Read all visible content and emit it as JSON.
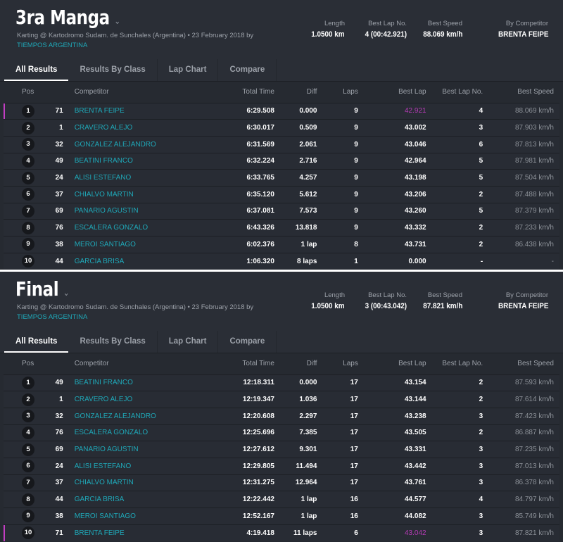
{
  "columns": [
    "Pos",
    "",
    "Competitor",
    "Total Time",
    "Diff",
    "Laps",
    "Best Lap",
    "Best Lap No.",
    "Best Speed"
  ],
  "tabs": [
    "All Results",
    "Results By Class",
    "Lap Chart",
    "Compare"
  ],
  "sessions": [
    {
      "title": "3ra Manga",
      "subtitle": "Karting @ Kartodromo Sudam. de Sunchales (Argentina) • 23 February 2018 by",
      "organizer": "TIEMPOS ARGENTINA",
      "stats": {
        "length_label": "Length",
        "length": "1.0500 km",
        "bestlapno_label": "Best Lap No.",
        "bestlapno": "4 (00:42.921)",
        "bestspeed_label": "Best Speed",
        "bestspeed": "88.069 km/h",
        "by_label": "By Competitor",
        "by": "BRENTA FEIPE"
      },
      "highlight_row": 0,
      "rows": [
        [
          "1",
          "71",
          "BRENTA FEIPE",
          "6:29.508",
          "0.000",
          "9",
          "42.921",
          "4",
          "88.069 km/h"
        ],
        [
          "2",
          "1",
          "CRAVERO ALEJO",
          "6:30.017",
          "0.509",
          "9",
          "43.002",
          "3",
          "87.903 km/h"
        ],
        [
          "3",
          "32",
          "GONZALEZ ALEJANDRO",
          "6:31.569",
          "2.061",
          "9",
          "43.046",
          "6",
          "87.813 km/h"
        ],
        [
          "4",
          "49",
          "BEATINI FRANCO",
          "6:32.224",
          "2.716",
          "9",
          "42.964",
          "5",
          "87.981 km/h"
        ],
        [
          "5",
          "24",
          "ALISI ESTEFANO",
          "6:33.765",
          "4.257",
          "9",
          "43.198",
          "5",
          "87.504 km/h"
        ],
        [
          "6",
          "37",
          "CHIALVO MARTIN",
          "6:35.120",
          "5.612",
          "9",
          "43.206",
          "2",
          "87.488 km/h"
        ],
        [
          "7",
          "69",
          "PANARIO AGUSTIN",
          "6:37.081",
          "7.573",
          "9",
          "43.260",
          "5",
          "87.379 km/h"
        ],
        [
          "8",
          "76",
          "ESCALERA GONZALO",
          "6:43.326",
          "13.818",
          "9",
          "43.332",
          "2",
          "87.233 km/h"
        ],
        [
          "9",
          "38",
          "MEROI SANTIAGO",
          "6:02.376",
          "1 lap",
          "8",
          "43.731",
          "2",
          "86.438 km/h"
        ],
        [
          "10",
          "44",
          "GARCIA BRISA",
          "1:06.320",
          "8 laps",
          "1",
          "0.000",
          "-",
          "-"
        ]
      ]
    },
    {
      "title": "Final",
      "subtitle": "Karting @ Kartodromo Sudam. de Sunchales (Argentina) • 23 February 2018 by",
      "organizer": "TIEMPOS ARGENTINA",
      "stats": {
        "length_label": "Length",
        "length": "1.0500 km",
        "bestlapno_label": "Best Lap No.",
        "bestlapno": "3 (00:43.042)",
        "bestspeed_label": "Best Speed",
        "bestspeed": "87.821 km/h",
        "by_label": "By Competitor",
        "by": "BRENTA FEIPE"
      },
      "highlight_row": 9,
      "rows": [
        [
          "1",
          "49",
          "BEATINI FRANCO",
          "12:18.311",
          "0.000",
          "17",
          "43.154",
          "2",
          "87.593 km/h"
        ],
        [
          "2",
          "1",
          "CRAVERO ALEJO",
          "12:19.347",
          "1.036",
          "17",
          "43.144",
          "2",
          "87.614 km/h"
        ],
        [
          "3",
          "32",
          "GONZALEZ ALEJANDRO",
          "12:20.608",
          "2.297",
          "17",
          "43.238",
          "3",
          "87.423 km/h"
        ],
        [
          "4",
          "76",
          "ESCALERA GONZALO",
          "12:25.696",
          "7.385",
          "17",
          "43.505",
          "2",
          "86.887 km/h"
        ],
        [
          "5",
          "69",
          "PANARIO AGUSTIN",
          "12:27.612",
          "9.301",
          "17",
          "43.331",
          "3",
          "87.235 km/h"
        ],
        [
          "6",
          "24",
          "ALISI ESTEFANO",
          "12:29.805",
          "11.494",
          "17",
          "43.442",
          "3",
          "87.013 km/h"
        ],
        [
          "7",
          "37",
          "CHIALVO MARTIN",
          "12:31.275",
          "12.964",
          "17",
          "43.761",
          "3",
          "86.378 km/h"
        ],
        [
          "8",
          "44",
          "GARCIA BRISA",
          "12:22.442",
          "1 lap",
          "16",
          "44.577",
          "4",
          "84.797 km/h"
        ],
        [
          "9",
          "38",
          "MEROI SANTIAGO",
          "12:52.167",
          "1 lap",
          "16",
          "44.082",
          "3",
          "85.749 km/h"
        ],
        [
          "10",
          "71",
          "BRENTA FEIPE",
          "4:19.418",
          "11 laps",
          "6",
          "43.042",
          "3",
          "87.821 km/h"
        ]
      ]
    }
  ]
}
